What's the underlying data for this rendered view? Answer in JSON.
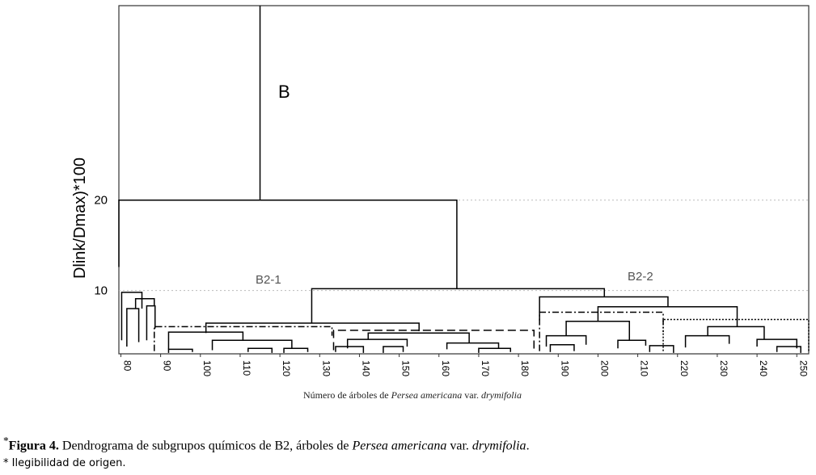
{
  "chart_data": {
    "type": "dendrogram",
    "y_label": "Dlink/Dmax)*100",
    "x_label": [
      "Número de árboles de ",
      "Persea americana",
      " var. ",
      "drymifolia"
    ],
    "annotations": [
      "B",
      "B2-1",
      "B2-2"
    ],
    "xlim": [
      79.5,
      253
    ],
    "ylim": [
      3,
      41.5
    ],
    "xticks": [
      80,
      90,
      100,
      110,
      120,
      130,
      140,
      150,
      160,
      170,
      180,
      190,
      200,
      210,
      220,
      230,
      240,
      250
    ],
    "yticks": [
      10,
      20
    ],
    "grid": true,
    "color": "#000000",
    "stem": {
      "x": 115,
      "y": [
        20,
        41.5
      ]
    },
    "links": [
      [
        79.5,
        164.5,
        20,
        12.6,
        10.2,
        "solid"
      ],
      [
        128,
        201.6,
        10.2,
        6.4,
        9.3,
        "solid"
      ],
      [
        101.4,
        155,
        6.4,
        5.3,
        5.5,
        "solid"
      ],
      [
        92,
        110.7,
        5.4,
        3.5,
        4.5,
        "solid"
      ],
      [
        103,
        123,
        4.5,
        3.4,
        3.6,
        "solid"
      ],
      [
        88.4,
        133.1,
        6.0,
        3.3,
        5.0,
        "dashdot"
      ],
      [
        133.5,
        183.9,
        5.6,
        3.4,
        3.4,
        "dashed"
      ],
      [
        142.2,
        167.6,
        5.3,
        4.6,
        4.2,
        "solid"
      ],
      [
        137,
        152,
        4.6,
        3.6,
        3.8,
        "solid"
      ],
      [
        162,
        175,
        4.2,
        3.5,
        3.6,
        "solid"
      ],
      [
        80.2,
        85.3,
        9.8,
        4.5,
        8.0,
        "solid"
      ],
      [
        83.7,
        88.4,
        9.1,
        8.0,
        8.3,
        "solid"
      ],
      [
        81.5,
        84.5,
        8.0,
        3.8,
        4.3,
        "solid"
      ],
      [
        86.5,
        88.6,
        8.3,
        4.5,
        5.8,
        "solid"
      ],
      [
        185.3,
        217.6,
        9.3,
        6.7,
        8.2,
        "solid"
      ],
      [
        200,
        235,
        8.2,
        6.6,
        6.0,
        "solid"
      ],
      [
        185.3,
        216.4,
        7.6,
        3.3,
        5.4,
        "dashdot"
      ],
      [
        216.4,
        253,
        6.8,
        3.3,
        3.3,
        "dotted"
      ],
      [
        192,
        207.9,
        6.6,
        5.0,
        4.5,
        "solid"
      ],
      [
        227.6,
        241.8,
        6.0,
        5.0,
        4.6,
        "solid"
      ],
      [
        187,
        197,
        5.0,
        3.8,
        4.0,
        "solid"
      ],
      [
        205,
        212,
        4.5,
        3.6,
        3.9,
        "solid"
      ],
      [
        222,
        233,
        5.0,
        3.7,
        4.1,
        "solid"
      ],
      [
        240,
        250,
        4.6,
        3.8,
        3.6,
        "solid"
      ],
      [
        92,
        98,
        3.5,
        3.1,
        3.2,
        "solid"
      ],
      [
        112,
        118,
        3.6,
        3.2,
        3.1,
        "solid"
      ],
      [
        121,
        127,
        3.6,
        3.1,
        3.2,
        "solid"
      ],
      [
        134,
        141,
        3.8,
        3.2,
        3.1,
        "solid"
      ],
      [
        146,
        151,
        3.8,
        3.1,
        3.2,
        "solid"
      ],
      [
        170,
        178,
        3.6,
        3.1,
        3.2,
        "solid"
      ],
      [
        188,
        194,
        4.0,
        3.2,
        3.3,
        "solid"
      ],
      [
        213,
        219,
        3.9,
        3.2,
        3.1,
        "solid"
      ],
      [
        245,
        251,
        3.8,
        3.2,
        3.1,
        "solid"
      ]
    ]
  },
  "caption": [
    "*",
    "Figura 4.",
    " Dendrograma de subgrupos químicos de B2, árboles de ",
    "Persea americana",
    " var. ",
    "drymifolia",
    "."
  ],
  "note": "* Ilegibilidad de origen."
}
